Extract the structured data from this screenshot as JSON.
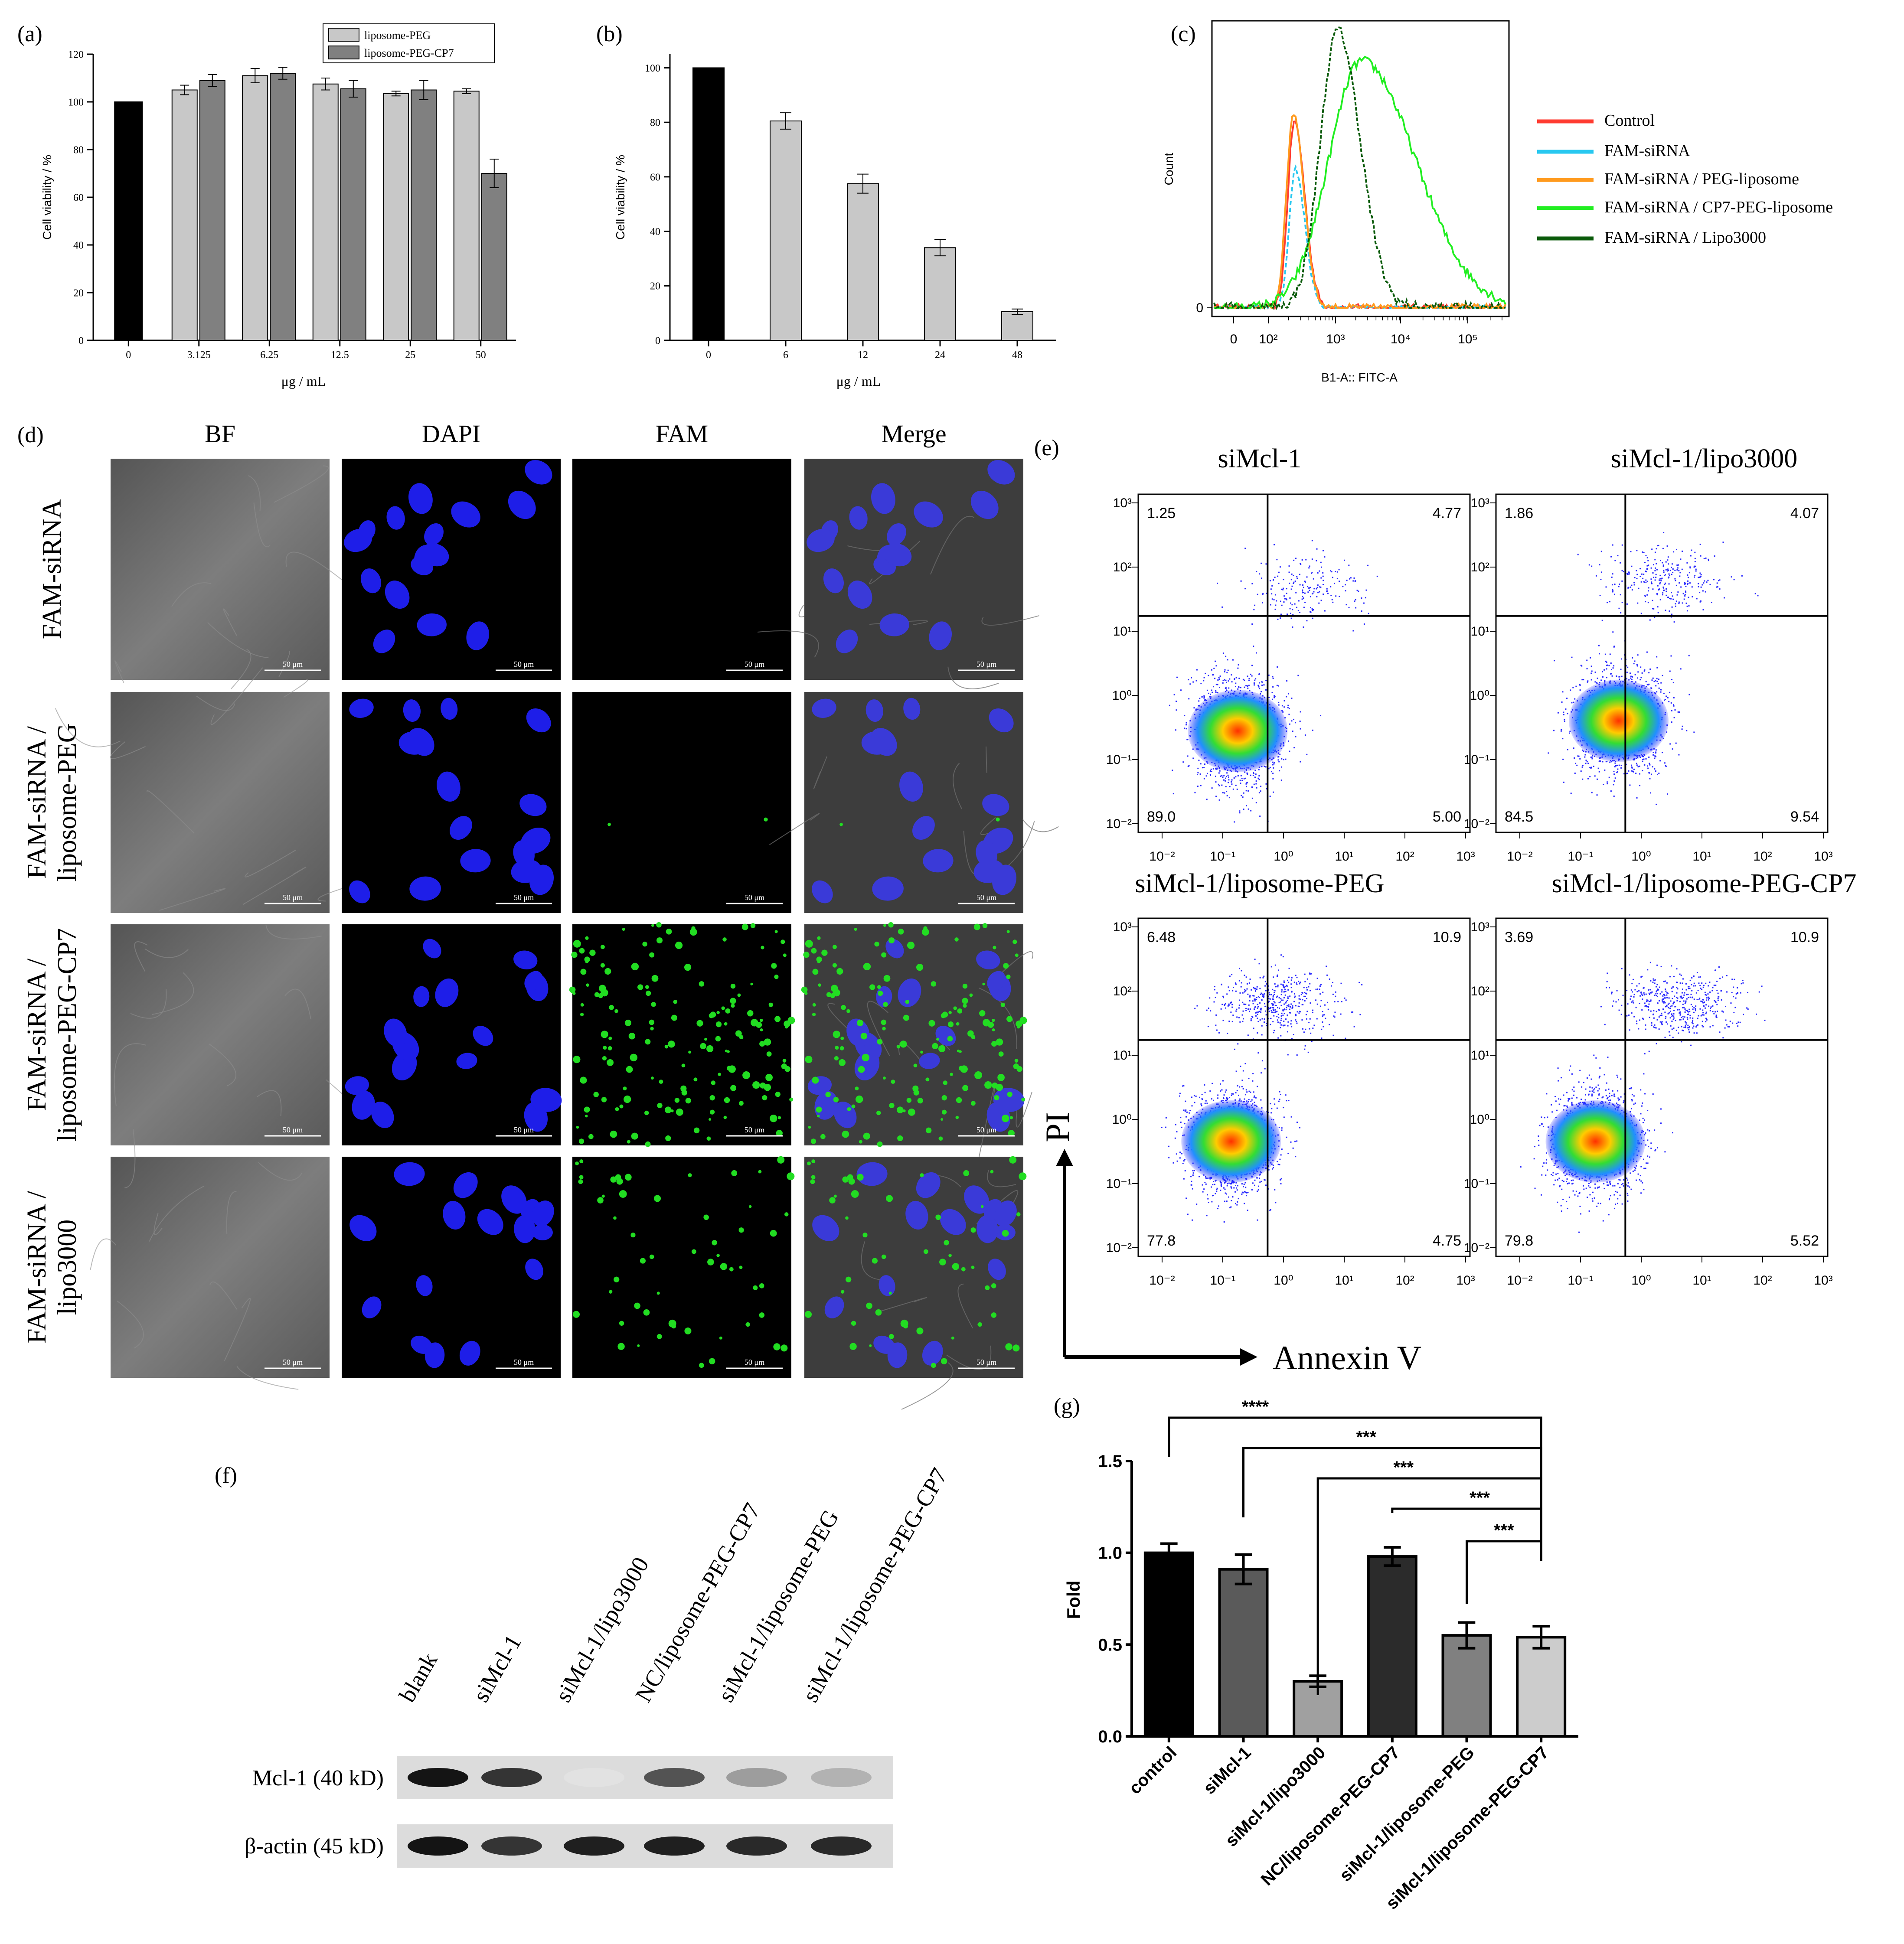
{
  "panel_labels": {
    "a": "(a)",
    "b": "(b)",
    "c": "(c)",
    "d": "(d)",
    "e": "(e)",
    "f": "(f)",
    "g": "(g)"
  },
  "colors": {
    "black": "#000000",
    "light_gray": "#c8c8c8",
    "dark_gray": "#808080",
    "blue": "#1a1aff",
    "green": "#22dd22"
  },
  "chart_data": [
    {
      "id": "a",
      "type": "bar",
      "categories": [
        "0",
        "3.125",
        "6.25",
        "12.5",
        "25",
        "50"
      ],
      "series": [
        {
          "name": "",
          "values": [
            100,
            null,
            null,
            null,
            null,
            null
          ],
          "errors": [
            0,
            0,
            0,
            0,
            0,
            0
          ]
        },
        {
          "name": "liposome-PEG",
          "values": [
            null,
            105,
            111,
            107.5,
            103.5,
            104.5
          ],
          "errors": [
            0,
            2,
            3,
            2.5,
            1,
            1
          ]
        },
        {
          "name": "liposome-PEG-CP7",
          "values": [
            null,
            109,
            112,
            105.5,
            105,
            70
          ],
          "errors": [
            0,
            2.5,
            2.5,
            3.5,
            4,
            6
          ]
        }
      ],
      "xlabel": "μg / mL",
      "ylabel": "Cell viability / %",
      "ylim": [
        0,
        120
      ],
      "yticks": [
        "0",
        "20",
        "40",
        "60",
        "80",
        "100",
        "120"
      ],
      "legend": "top-right"
    },
    {
      "id": "b",
      "type": "bar",
      "categories": [
        "0",
        "6",
        "12",
        "24",
        "48"
      ],
      "values": [
        100,
        80.5,
        57.5,
        34,
        10.5
      ],
      "errors": [
        0,
        3,
        3.5,
        3,
        1
      ],
      "xlabel": "μg / mL",
      "ylabel": "Cell viability / %",
      "ylim": [
        0,
        105
      ],
      "yticks": [
        "0",
        "20",
        "40",
        "60",
        "80",
        "100"
      ]
    },
    {
      "id": "c",
      "type": "line",
      "xlabel": "B1-A:: FITC-A",
      "ylabel": "Count",
      "xticks": [
        "0",
        "10²",
        "10³",
        "10⁴",
        "10⁵"
      ],
      "yticks": [
        "0"
      ],
      "series": [
        {
          "name": "Control",
          "color": "#ff3b30"
        },
        {
          "name": "FAM-siRNA",
          "color": "#28c8f0"
        },
        {
          "name": "FAM-siRNA / PEG-liposome",
          "color": "#ff9a1e"
        },
        {
          "name": "FAM-siRNA / CP7-PEG-liposome",
          "color": "#22ee22"
        },
        {
          "name": "FAM-siRNA / Lipo3000",
          "color": "#0a5a0a"
        }
      ],
      "legend": "right"
    },
    {
      "id": "e",
      "type": "scatter",
      "xlabel": "Annexin V",
      "ylabel": "PI",
      "ticks": [
        "10⁻²",
        "10⁻¹",
        "10⁰",
        "10¹",
        "10²",
        "10³"
      ],
      "plots": [
        {
          "title": "siMcl-1",
          "quadrants": {
            "ul": "1.25",
            "ur": "4.77",
            "ll": "89.0",
            "lr": "5.00"
          }
        },
        {
          "title": "siMcl-1/lipo3000",
          "quadrants": {
            "ul": "1.86",
            "ur": "4.07",
            "ll": "84.5",
            "lr": "9.54"
          }
        },
        {
          "title": "siMcl-1/liposome-PEG",
          "quadrants": {
            "ul": "6.48",
            "ur": "10.9",
            "ll": "77.8",
            "lr": "4.75"
          }
        },
        {
          "title": "siMcl-1/liposome-PEG-CP7",
          "quadrants": {
            "ul": "3.69",
            "ur": "10.9",
            "ll": "79.8",
            "lr": "5.52"
          }
        }
      ]
    },
    {
      "id": "g",
      "type": "bar",
      "categories": [
        "control",
        "siMcl-1",
        "siMcl-1/lipo3000",
        "NC/liposome-PEG-CP7",
        "siMcl-1/liposome-PEG",
        "siMcl-1/liposome-PEG-CP7"
      ],
      "values": [
        1.0,
        0.91,
        0.3,
        0.98,
        0.55,
        0.54
      ],
      "errors": [
        0.05,
        0.08,
        0.03,
        0.05,
        0.07,
        0.06
      ],
      "colors": [
        "#000000",
        "#5a5a5a",
        "#a0a0a0",
        "#2b2b2b",
        "#808080",
        "#cccccc"
      ],
      "ylabel": "Fold",
      "ylim": [
        0,
        1.5
      ],
      "yticks": [
        "0.0",
        "0.5",
        "1.0",
        "1.5"
      ],
      "significance": [
        "****",
        "***",
        "***",
        "***",
        "***"
      ]
    }
  ],
  "microscopy": {
    "columns": [
      "BF",
      "DAPI",
      "FAM",
      "Merge"
    ],
    "rows": [
      "FAM-siRNA",
      "FAM-siRNA / liposome-PEG",
      "FAM-siRNA / liposome-PEG-CP7",
      "FAM-siRNA / lipo3000"
    ],
    "scale": "50 μm"
  },
  "western": {
    "lanes": [
      "blank",
      "siMcl-1",
      "siMcl-1/lipo3000",
      "NC/liposome-PEG-CP7",
      "siMcl-1/liposome-PEG",
      "siMcl-1/liposome-PEG-CP7"
    ],
    "rows": [
      "Mcl-1 (40 kD)",
      "β-actin (45 kD)"
    ],
    "mcl1_intensity": [
      1.0,
      0.85,
      0.02,
      0.7,
      0.35,
      0.25
    ],
    "actin_intensity": [
      1,
      0.85,
      0.95,
      0.95,
      0.9,
      0.9
    ]
  }
}
